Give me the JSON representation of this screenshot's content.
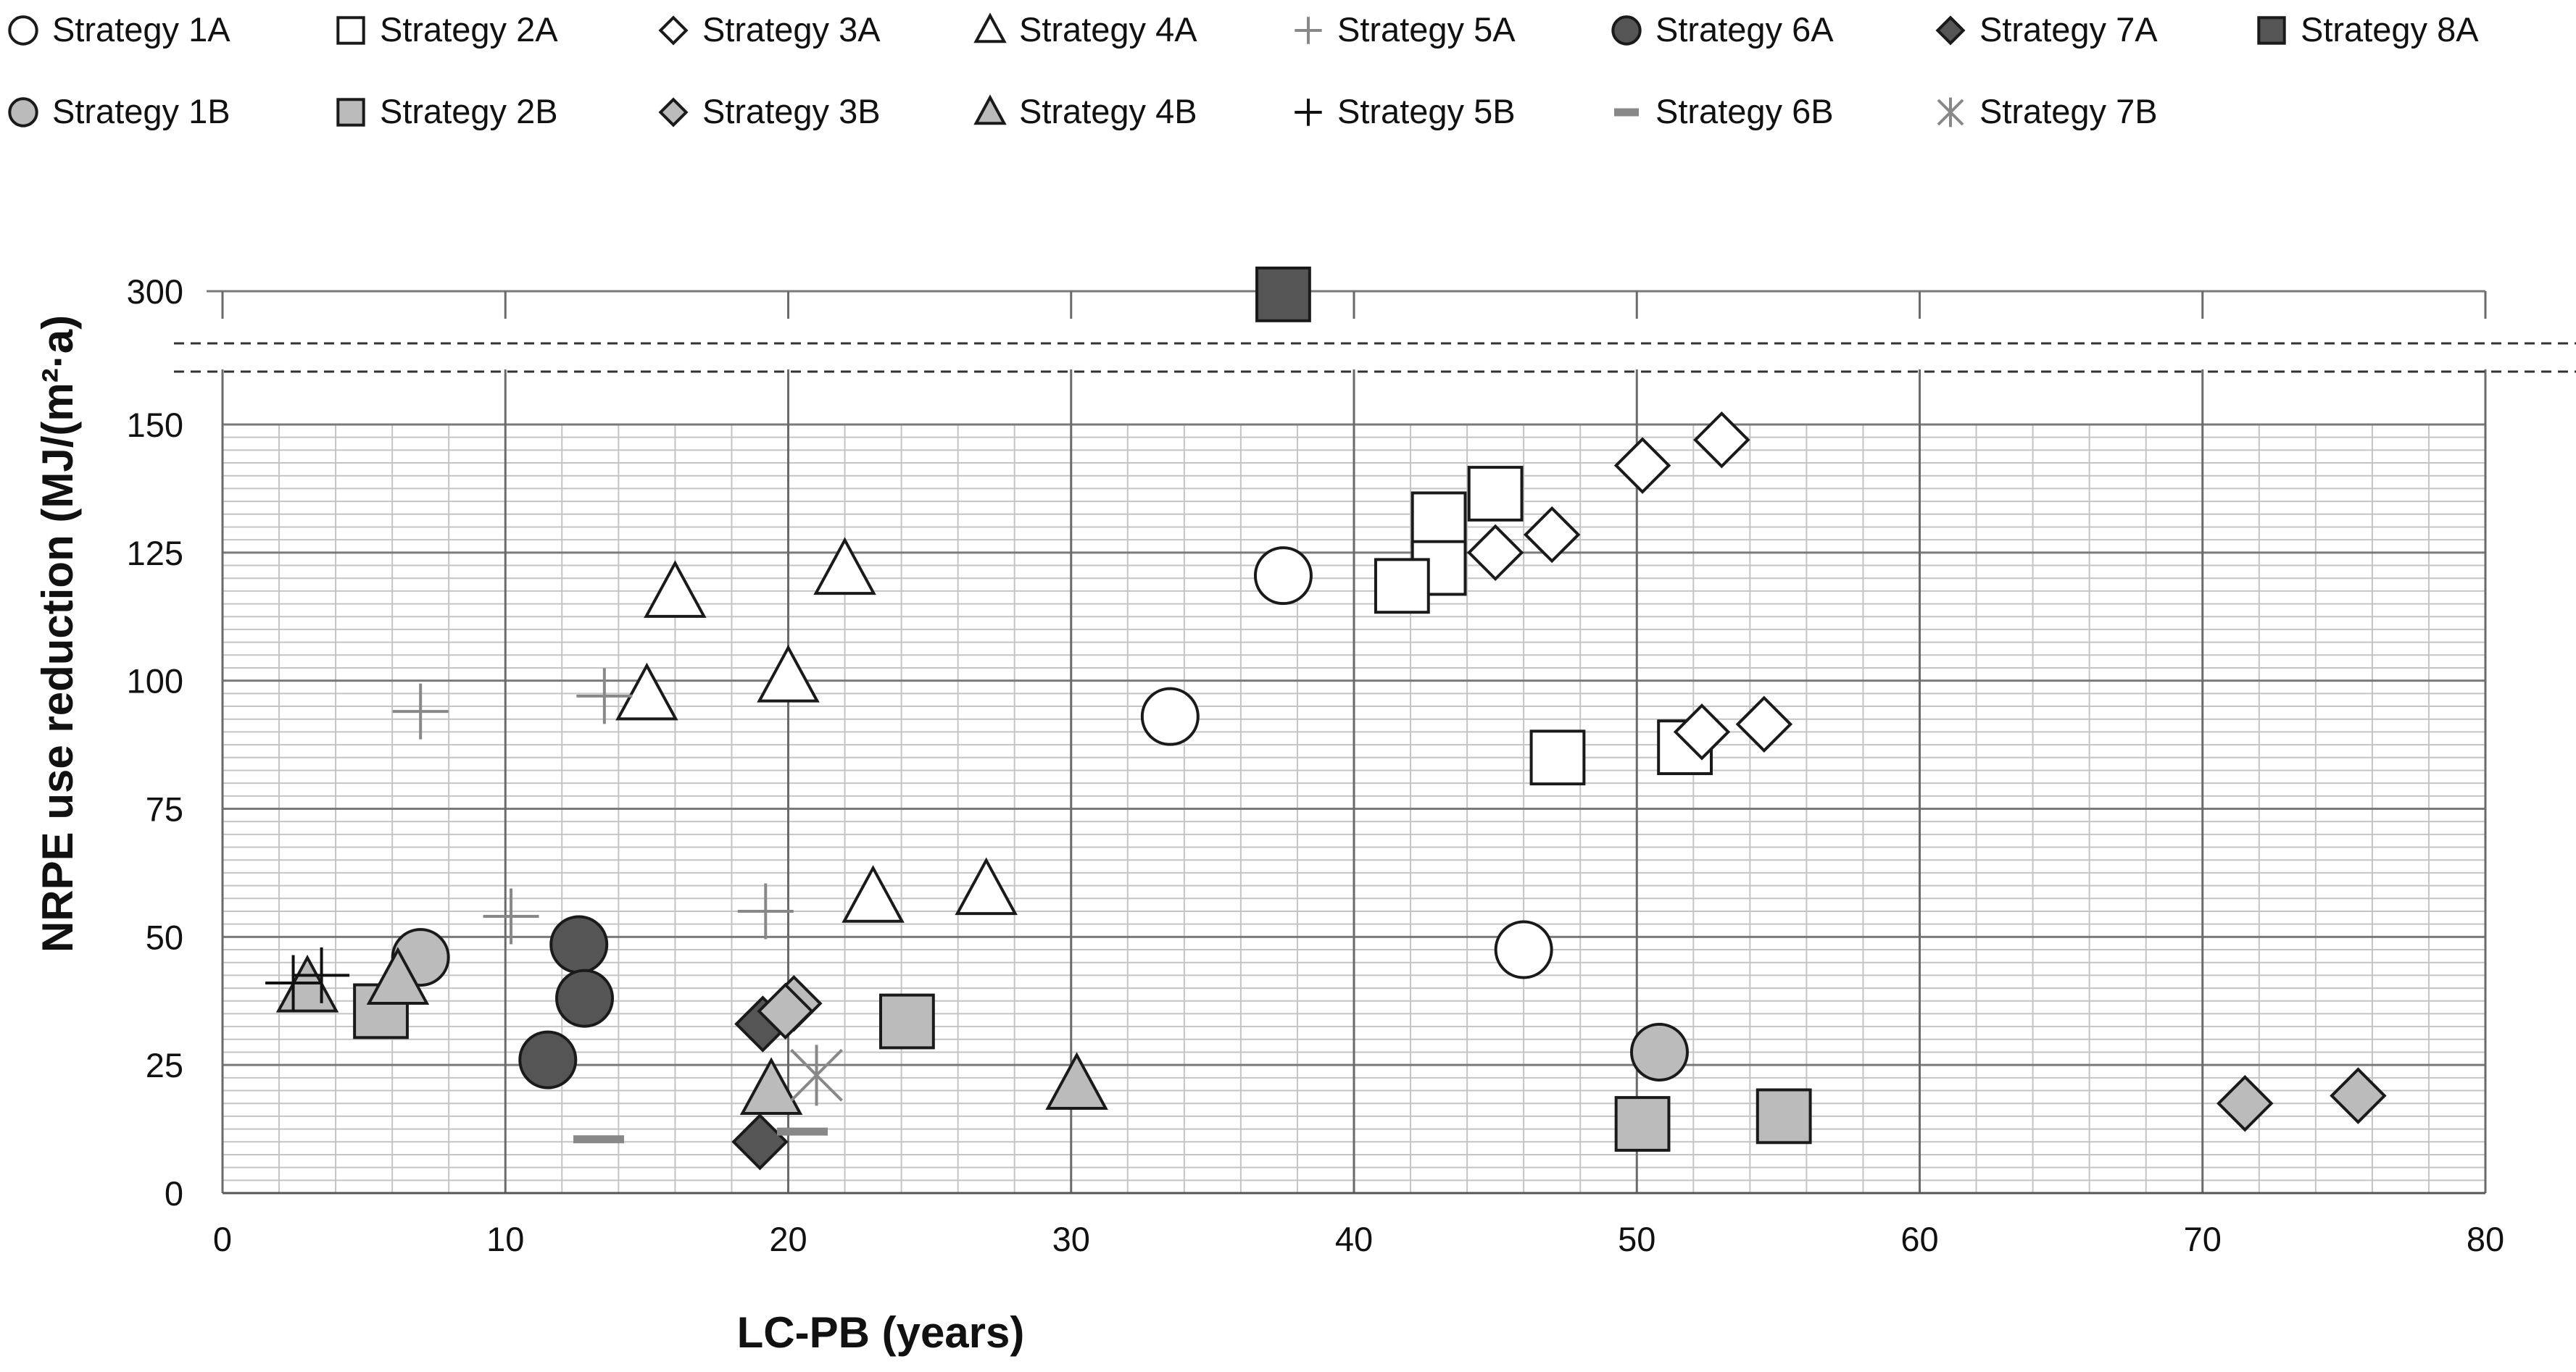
{
  "chart_data": {
    "type": "scatter",
    "title": "",
    "xlabel": "LC-PB (years)",
    "ylabel": "NRPE use reduction  (MJ/(m²·a)",
    "xlim": [
      0,
      80
    ],
    "ylim": [
      0,
      150
    ],
    "ylim_upper_panel": [
      300,
      300
    ],
    "axis_break": "between 150 and 300",
    "x_ticks": [
      "0",
      "10",
      "20",
      "30",
      "40",
      "50",
      "60",
      "70",
      "80"
    ],
    "y_ticks": [
      "0",
      "25",
      "50",
      "75",
      "100",
      "125",
      "150",
      "300"
    ],
    "grid": "major and minor",
    "legend_position": "top",
    "series": [
      {
        "name": "Strategy 1A",
        "marker": "circle-open",
        "color": "#ffffff",
        "points": [
          [
            37.5,
            120.5
          ],
          [
            33.5,
            93
          ],
          [
            46,
            47.5
          ]
        ]
      },
      {
        "name": "Strategy 2A",
        "marker": "square-open",
        "color": "#ffffff",
        "points": [
          [
            45,
            136.5
          ],
          [
            43,
            131.5
          ],
          [
            43,
            122
          ],
          [
            41.7,
            118.5
          ],
          [
            47.2,
            85
          ],
          [
            51.7,
            87
          ]
        ]
      },
      {
        "name": "Strategy 3A",
        "marker": "diamond-open",
        "color": "#ffffff",
        "points": [
          [
            53,
            147
          ],
          [
            50.2,
            142
          ],
          [
            47,
            128.5
          ],
          [
            45,
            125
          ],
          [
            52.3,
            90
          ],
          [
            54.5,
            91.5
          ]
        ]
      },
      {
        "name": "Strategy 4A",
        "marker": "triangle-open",
        "color": "#ffffff",
        "points": [
          [
            16,
            117
          ],
          [
            22,
            121.5
          ],
          [
            15,
            97
          ],
          [
            20,
            100.5
          ],
          [
            23,
            57.5
          ],
          [
            27,
            59
          ]
        ]
      },
      {
        "name": "Strategy 5A",
        "marker": "plus",
        "color": "#888888",
        "points": [
          [
            7,
            94
          ],
          [
            13.5,
            97
          ],
          [
            10.2,
            54
          ],
          [
            19.2,
            55
          ]
        ]
      },
      {
        "name": "Strategy 6A",
        "marker": "circle-filled",
        "color": "#555555",
        "points": [
          [
            12.6,
            48.5
          ],
          [
            12.8,
            38
          ],
          [
            11.5,
            26
          ]
        ]
      },
      {
        "name": "Strategy 7A",
        "marker": "diamond-filled",
        "color": "#555555",
        "points": [
          [
            19.1,
            33
          ],
          [
            19,
            10
          ]
        ]
      },
      {
        "name": "Strategy 8A",
        "marker": "square-filled",
        "color": "#555555",
        "points": [
          [
            37.5,
            298
          ]
        ]
      },
      {
        "name": "Strategy 1B",
        "marker": "circle-filled",
        "color": "#bbbbbb",
        "points": [
          [
            7,
            46
          ],
          [
            50.8,
            27.5
          ]
        ]
      },
      {
        "name": "Strategy 2B",
        "marker": "square-filled",
        "color": "#bbbbbb",
        "points": [
          [
            5.6,
            35.5
          ],
          [
            24.2,
            33.5
          ],
          [
            50.2,
            13.5
          ],
          [
            55.2,
            15
          ]
        ]
      },
      {
        "name": "Strategy 3B",
        "marker": "diamond-filled",
        "color": "#bbbbbb",
        "points": [
          [
            20.2,
            37
          ],
          [
            19.9,
            35.5
          ],
          [
            71.5,
            17.5
          ],
          [
            75.5,
            19
          ]
        ]
      },
      {
        "name": "Strategy 4B",
        "marker": "triangle-filled",
        "color": "#bbbbbb",
        "points": [
          [
            3,
            40
          ],
          [
            6.2,
            41.5
          ],
          [
            19.4,
            20
          ],
          [
            30.2,
            21
          ]
        ]
      },
      {
        "name": "Strategy 5B",
        "marker": "plus",
        "color": "#111111",
        "points": [
          [
            2.5,
            41
          ],
          [
            3.5,
            42.5
          ]
        ]
      },
      {
        "name": "Strategy 6B",
        "marker": "dash",
        "color": "#888888",
        "points": [
          [
            13.3,
            10.5
          ],
          [
            20.5,
            12
          ]
        ]
      },
      {
        "name": "Strategy 7B",
        "marker": "asterisk",
        "color": "#888888",
        "points": [
          [
            21,
            23
          ]
        ]
      }
    ]
  }
}
